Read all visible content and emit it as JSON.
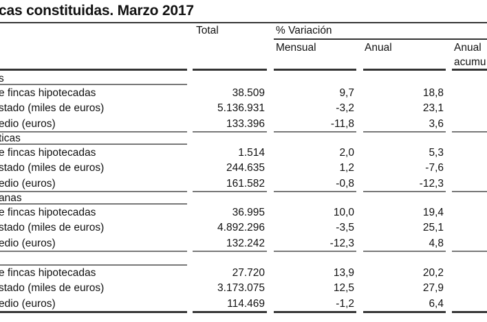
{
  "title": "cas constituidas. Marzo 2017",
  "header": {
    "total": "Total",
    "variacion": "% Variación",
    "mensual": "Mensual",
    "anual": "Anual",
    "anual_acum_1": "Anual",
    "anual_acum_2": "acumu"
  },
  "sections": [
    {
      "label": "s",
      "rows": [
        {
          "label": "e fincas hipotecadas",
          "total": "38.509",
          "mensual": "9,7",
          "anual": "18,8"
        },
        {
          "label": "stado (miles de euros)",
          "total": "5.136.931",
          "mensual": "-3,2",
          "anual": "23,1"
        },
        {
          "label": "edio (euros)",
          "total": "133.396",
          "mensual": "-11,8",
          "anual": "3,6"
        }
      ]
    },
    {
      "label": "ticas",
      "rows": [
        {
          "label": "e fincas hipotecadas",
          "total": "1.514",
          "mensual": "2,0",
          "anual": "5,3"
        },
        {
          "label": "stado (miles de euros)",
          "total": "244.635",
          "mensual": "1,2",
          "anual": "-7,6"
        },
        {
          "label": "edio (euros)",
          "total": "161.582",
          "mensual": "-0,8",
          "anual": "-12,3"
        }
      ]
    },
    {
      "label": "anas",
      "rows": [
        {
          "label": "e fincas hipotecadas",
          "total": "36.995",
          "mensual": "10,0",
          "anual": "19,4"
        },
        {
          "label": "stado (miles de euros)",
          "total": "4.892.296",
          "mensual": "-3,5",
          "anual": "25,1"
        },
        {
          "label": "edio (euros)",
          "total": "132.242",
          "mensual": "-12,3",
          "anual": "4,8"
        }
      ]
    },
    {
      "label": "",
      "rows": [
        {
          "label": "e fincas hipotecadas",
          "total": "27.720",
          "mensual": "13,9",
          "anual": "20,2"
        },
        {
          "label": "stado (miles de euros)",
          "total": "3.173.075",
          "mensual": "12,5",
          "anual": "27,9"
        },
        {
          "label": "edio (euros)",
          "total": "114.469",
          "mensual": "-1,2",
          "anual": "6,4"
        }
      ]
    }
  ]
}
